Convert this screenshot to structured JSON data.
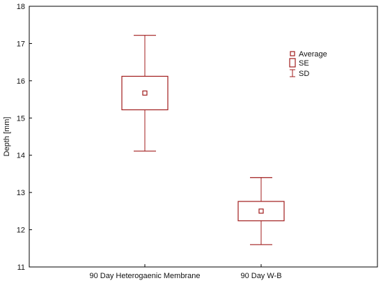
{
  "chart_data": {
    "type": "box",
    "ylabel": "Depth [mm]",
    "ylim": [
      11,
      18
    ],
    "yticks": [
      11,
      12,
      13,
      14,
      15,
      16,
      17,
      18
    ],
    "categories": [
      "90 Day Heterogaenic Membrane",
      "90 Day W-B"
    ],
    "stats": [
      {
        "average": 15.67,
        "se_low": 15.22,
        "se_high": 16.12,
        "sd_low": 14.11,
        "sd_high": 17.22
      },
      {
        "average": 12.5,
        "se_low": 12.24,
        "se_high": 12.76,
        "sd_low": 11.6,
        "sd_high": 13.4
      }
    ],
    "legend": {
      "placement": "top-right",
      "entries": [
        {
          "key": "average",
          "label": "Average"
        },
        {
          "key": "se",
          "label": "SE"
        },
        {
          "key": "sd",
          "label": "SD"
        }
      ]
    },
    "color": "#a01c1c",
    "grid": false
  }
}
